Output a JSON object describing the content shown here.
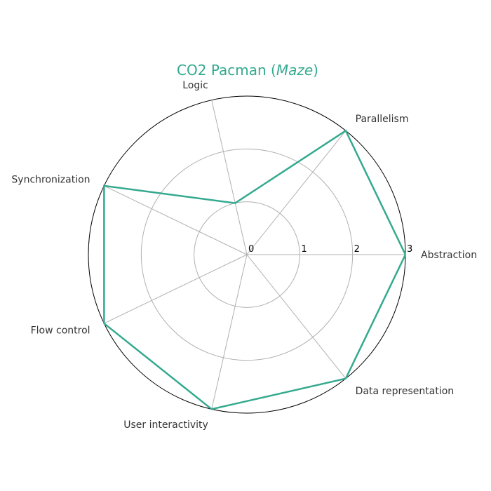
{
  "chart_data": {
    "type": "radar",
    "title_main": "CO2 Pacman (",
    "title_italic": "Maze",
    "title_end": ")",
    "axes": [
      "Abstraction",
      "Parallelism",
      "Logic",
      "Synchronization",
      "Flow control",
      "User interactivity",
      "Data representation"
    ],
    "series": [
      {
        "values": [
          3,
          3,
          1,
          3,
          3,
          3,
          3
        ],
        "color": "#34a98f"
      }
    ],
    "r_ticks": [
      "0",
      "1",
      "2",
      "3"
    ],
    "rlim": [
      0,
      3
    ],
    "grid": true
  }
}
